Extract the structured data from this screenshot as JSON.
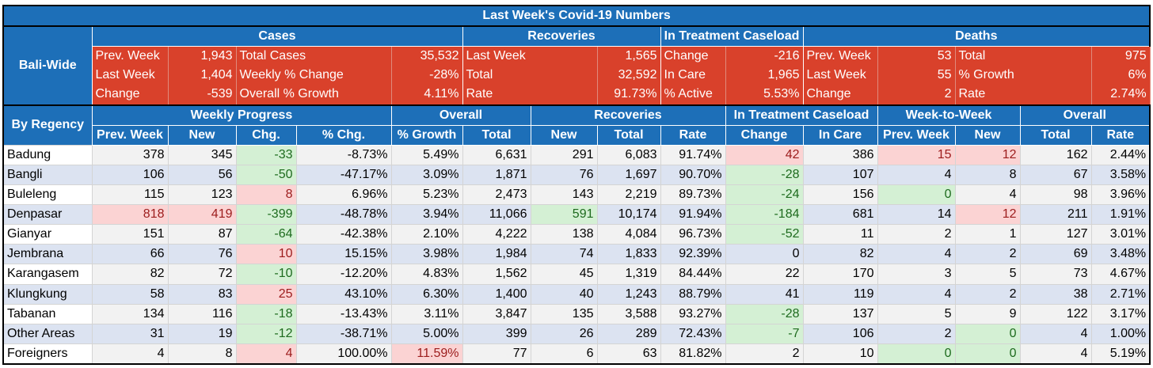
{
  "title": "Last Week's Covid-19 Numbers",
  "bali_wide": {
    "label": "Bali-Wide",
    "groups": [
      "Cases",
      "Recoveries",
      "In Treatment Caseload",
      "Deaths"
    ],
    "rows": [
      [
        "Prev. Week",
        "1,943",
        "Total Cases",
        "35,532",
        "Last Week",
        "1,565",
        "Change",
        "-216",
        "Prev. Week",
        "53",
        "Total",
        "975"
      ],
      [
        "Last Week",
        "1,404",
        "Weekly % Change",
        "-28%",
        "Total",
        "32,592",
        "In Care",
        "1,965",
        "Last Week",
        "55",
        "% Growth",
        "6%"
      ],
      [
        "Change",
        "-539",
        "Overall % Growth",
        "4.11%",
        "Rate",
        "91.73%",
        "% Active",
        "5.53%",
        "Change",
        "2",
        "Rate",
        "2.74%"
      ]
    ]
  },
  "regency": {
    "label": "By Regency",
    "groups": [
      "Weekly Progress",
      "Overall",
      "Recoveries",
      "In Treatment Caseload",
      "Week-to-Week",
      "Overall"
    ],
    "columns": [
      "Prev. Week",
      "New",
      "Chg.",
      "% Chg.",
      "% Growth",
      "Total",
      "New",
      "Total",
      "Rate",
      "Change",
      "In Care",
      "Prev. Week",
      "New",
      "Total",
      "Rate"
    ],
    "rows": [
      {
        "name": "Badung",
        "values": [
          "378",
          "345",
          "-33",
          "-8.73%",
          "5.49%",
          "6,631",
          "291",
          "6,083",
          "91.74%",
          "42",
          "386",
          "15",
          "12",
          "162",
          "2.44%"
        ]
      },
      {
        "name": "Bangli",
        "values": [
          "106",
          "56",
          "-50",
          "-47.17%",
          "3.09%",
          "1,871",
          "76",
          "1,697",
          "90.70%",
          "-28",
          "107",
          "4",
          "8",
          "67",
          "3.58%"
        ]
      },
      {
        "name": "Buleleng",
        "values": [
          "115",
          "123",
          "8",
          "6.96%",
          "5.23%",
          "2,473",
          "143",
          "2,219",
          "89.73%",
          "-24",
          "156",
          "0",
          "4",
          "98",
          "3.96%"
        ]
      },
      {
        "name": "Denpasar",
        "values": [
          "818",
          "419",
          "-399",
          "-48.78%",
          "3.94%",
          "11,066",
          "591",
          "10,174",
          "91.94%",
          "-184",
          "681",
          "14",
          "12",
          "211",
          "1.91%"
        ]
      },
      {
        "name": "Gianyar",
        "values": [
          "151",
          "87",
          "-64",
          "-42.38%",
          "2.10%",
          "4,222",
          "138",
          "4,084",
          "96.73%",
          "-52",
          "11",
          "2",
          "1",
          "127",
          "3.01%"
        ]
      },
      {
        "name": "Jembrana",
        "values": [
          "66",
          "76",
          "10",
          "15.15%",
          "3.98%",
          "1,984",
          "74",
          "1,833",
          "92.39%",
          "0",
          "82",
          "4",
          "2",
          "69",
          "3.48%"
        ]
      },
      {
        "name": "Karangasem",
        "values": [
          "82",
          "72",
          "-10",
          "-12.20%",
          "4.83%",
          "1,562",
          "45",
          "1,319",
          "84.44%",
          "22",
          "170",
          "3",
          "5",
          "73",
          "4.67%"
        ]
      },
      {
        "name": "Klungkung",
        "values": [
          "58",
          "83",
          "25",
          "43.10%",
          "6.30%",
          "1,400",
          "40",
          "1,243",
          "88.79%",
          "41",
          "119",
          "4",
          "2",
          "38",
          "2.71%"
        ]
      },
      {
        "name": "Tabanan",
        "values": [
          "134",
          "116",
          "-18",
          "-13.43%",
          "3.11%",
          "3,847",
          "135",
          "3,588",
          "93.27%",
          "-28",
          "137",
          "5",
          "9",
          "122",
          "3.17%"
        ]
      },
      {
        "name": "Other Areas",
        "values": [
          "31",
          "19",
          "-12",
          "-38.71%",
          "5.00%",
          "399",
          "26",
          "289",
          "72.43%",
          "-7",
          "106",
          "2",
          "0",
          "4",
          "1.00%"
        ]
      },
      {
        "name": "Foreigners",
        "values": [
          "4",
          "8",
          "4",
          "100.00%",
          "11.59%",
          "77",
          "6",
          "63",
          "81.82%",
          "2",
          "10",
          "0",
          "0",
          "4",
          "5.19%"
        ]
      }
    ]
  },
  "colors": {
    "header_blue": "#1d6fb8",
    "summary_red": "#d9412b",
    "increase_pink": "#fbd3d3",
    "decrease_green": "#d4f0d4"
  }
}
